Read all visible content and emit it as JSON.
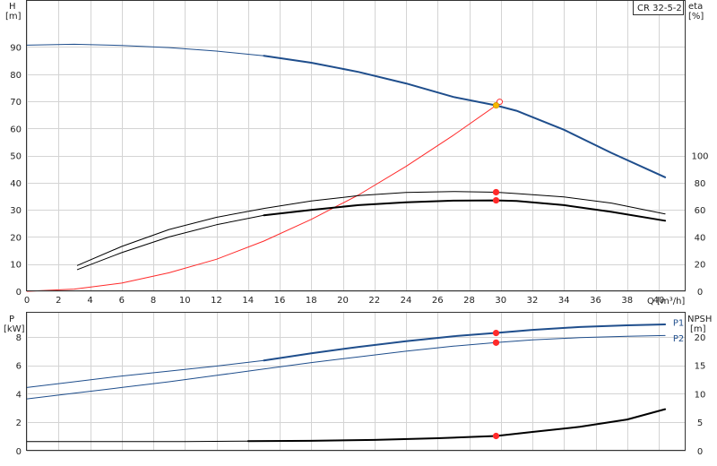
{
  "colors": {
    "blue": "#1f4e8c",
    "red": "#ff2a2a",
    "black": "#000000",
    "orange": "#f5b800"
  },
  "chart_data": [
    {
      "type": "line",
      "title": "",
      "legend_box": "CR 32-5-2",
      "xlabel": "Q [m³/h]",
      "xlim": [
        0,
        41.7
      ],
      "x_ticks": [
        0,
        2,
        4,
        6,
        8,
        10,
        12,
        14,
        16,
        18,
        20,
        22,
        24,
        26,
        28,
        30,
        32,
        34,
        36,
        38,
        40
      ],
      "ylabel_left": {
        "name": "H",
        "unit": "[m]"
      },
      "ylim_left": [
        0,
        107
      ],
      "y_ticks_left": [
        0,
        10,
        20,
        30,
        40,
        50,
        60,
        70,
        80,
        90
      ],
      "ylabel_right": {
        "name": "eta",
        "unit": "[%]"
      },
      "ylim_right": [
        0,
        214
      ],
      "y_ticks_right": [
        0,
        20,
        40,
        60,
        80,
        100
      ],
      "grid": true,
      "series": [
        {
          "color": "blue",
          "width": 1,
          "axis": "left",
          "x": [
            0,
            3,
            6,
            9,
            12,
            15
          ],
          "y": [
            90.7,
            91,
            90.6,
            89.8,
            88.5,
            86.8
          ]
        },
        {
          "color": "blue",
          "width": 2,
          "axis": "left",
          "x": [
            15,
            18,
            21,
            24,
            27,
            29.7,
            31,
            34,
            37,
            40.4
          ],
          "y": [
            86.8,
            84.2,
            80.8,
            76.6,
            71.6,
            68.5,
            66.5,
            59.5,
            51,
            42
          ]
        },
        {
          "color": "red",
          "width": 1,
          "axis": "left",
          "x": [
            0,
            3,
            6,
            9,
            12,
            15,
            18,
            21,
            24,
            27,
            29.7
          ],
          "y": [
            0,
            0.8,
            3,
            6.8,
            11.8,
            18.5,
            26.5,
            35.5,
            46,
            57.5,
            68.5
          ]
        },
        {
          "color": "black",
          "width": 1,
          "axis": "right",
          "x": [
            3.2,
            6,
            9,
            12,
            15,
            18,
            21,
            24,
            27,
            29.7,
            31,
            34,
            37,
            40.4
          ],
          "y": [
            19,
            33,
            45.5,
            54.5,
            61,
            66.5,
            70.5,
            72.8,
            73.5,
            73,
            72,
            69.5,
            65,
            57
          ]
        },
        {
          "color": "black",
          "width": 1,
          "axis": "right",
          "x": [
            3.2,
            6,
            9,
            12,
            15
          ],
          "y": [
            16,
            28.5,
            40,
            49,
            56
          ]
        },
        {
          "color": "black",
          "width": 2,
          "axis": "right",
          "x": [
            15,
            18,
            21,
            24,
            27,
            29.7,
            31,
            34,
            37,
            40.4
          ],
          "y": [
            56,
            60,
            63.5,
            65.5,
            66.8,
            67,
            66.5,
            63.5,
            58.5,
            52
          ]
        }
      ],
      "markers": [
        {
          "x": 29.7,
          "y": 68.5,
          "axis": "left",
          "color": "orange"
        },
        {
          "x": 29.7,
          "y": 73,
          "axis": "right",
          "color": "red"
        },
        {
          "x": 29.7,
          "y": 67,
          "axis": "right",
          "color": "red"
        }
      ]
    },
    {
      "type": "line",
      "title": "",
      "xlim": [
        0,
        41.7
      ],
      "ylabel_left": {
        "name": "P",
        "unit": "[kW]"
      },
      "ylim_left": [
        0,
        9.7
      ],
      "y_ticks_left": [
        0,
        2,
        4,
        6,
        8
      ],
      "ylabel_right": {
        "name": "NPSH",
        "unit": "[m]"
      },
      "ylim_right": [
        0,
        24.25
      ],
      "y_ticks_right": [
        0,
        5,
        10,
        15,
        20
      ],
      "grid": true,
      "series": [
        {
          "name": "P1",
          "color": "blue",
          "width": 1,
          "axis": "left",
          "x": [
            0,
            3,
            6,
            9,
            12,
            15
          ],
          "y": [
            4.45,
            4.85,
            5.25,
            5.6,
            5.95,
            6.35
          ]
        },
        {
          "name": "P1",
          "color": "blue",
          "width": 2,
          "axis": "left",
          "x": [
            15,
            18,
            21,
            24,
            27,
            29.7,
            32,
            35,
            38,
            40.4
          ],
          "y": [
            6.35,
            6.85,
            7.3,
            7.7,
            8.05,
            8.28,
            8.5,
            8.7,
            8.82,
            8.88
          ]
        },
        {
          "name": "P2",
          "color": "blue",
          "width": 1,
          "axis": "left",
          "x": [
            0,
            3,
            6,
            9,
            12,
            15,
            18,
            21,
            24,
            27,
            29.7,
            32,
            35,
            38,
            40.4
          ],
          "y": [
            3.65,
            4.05,
            4.45,
            4.85,
            5.3,
            5.75,
            6.2,
            6.6,
            7,
            7.35,
            7.6,
            7.8,
            7.95,
            8.05,
            8.1
          ]
        },
        {
          "color": "black",
          "width": 1,
          "axis": "right",
          "x": [
            0,
            5,
            10,
            14
          ],
          "y": [
            1.6,
            1.6,
            1.6,
            1.7
          ]
        },
        {
          "color": "black",
          "width": 2,
          "axis": "right",
          "x": [
            14,
            18,
            22,
            26,
            29.7,
            32,
            35,
            38,
            40.4
          ],
          "y": [
            1.7,
            1.75,
            1.9,
            2.2,
            2.6,
            3.3,
            4.2,
            5.5,
            7.3
          ]
        }
      ],
      "markers": [
        {
          "x": 29.7,
          "y": 8.28,
          "axis": "left",
          "color": "red"
        },
        {
          "x": 29.7,
          "y": 7.6,
          "axis": "left",
          "color": "red"
        },
        {
          "x": 29.7,
          "y": 2.6,
          "axis": "right",
          "color": "red"
        }
      ],
      "series_labels": [
        {
          "text": "P1",
          "x": 40.9,
          "y": 9.05
        },
        {
          "text": "P2",
          "x": 40.9,
          "y": 7.95
        }
      ]
    }
  ]
}
